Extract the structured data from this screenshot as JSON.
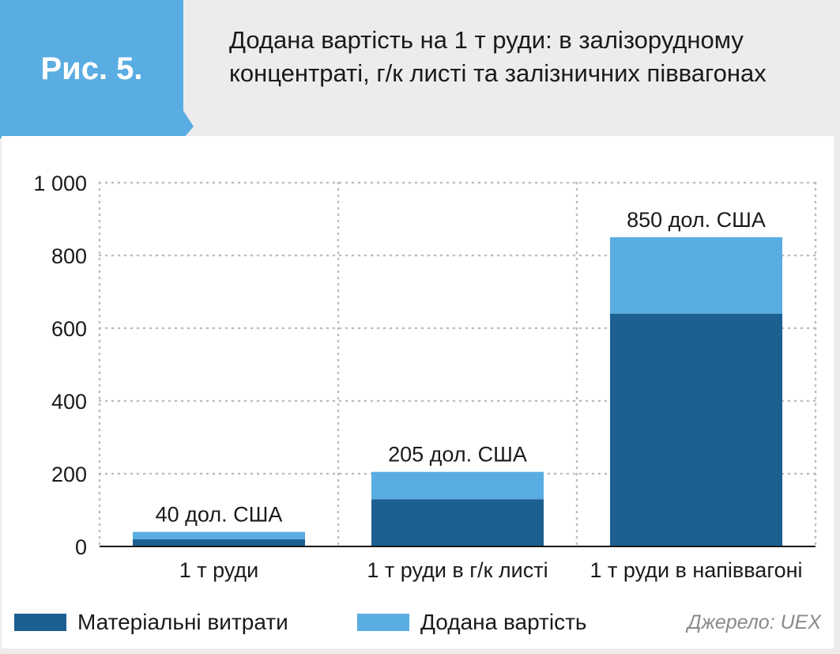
{
  "figure_label": "Рис. 5.",
  "title": "Додана вартість на 1 т руди: в залізорудному концентраті, г/к листі та залізничних піввагонах",
  "source": "Джерело: UEX",
  "colors": {
    "badge": "#5aade2",
    "material": "#1c5f91",
    "added": "#5aade2",
    "grid": "#bdbdbd",
    "frame": "#ececec"
  },
  "chart_data": {
    "type": "bar",
    "stacked": true,
    "categories": [
      "1 т руди",
      "1 т руди в г/к листі",
      "1 т руди в напіввагоні"
    ],
    "series": [
      {
        "name": "Матеріальні витрати",
        "values": [
          20,
          130,
          640
        ]
      },
      {
        "name": "Додана вартість",
        "values": [
          20,
          75,
          210
        ]
      }
    ],
    "totals_labels": [
      "40 дол. США",
      "205 дол. США",
      "850 дол. США"
    ],
    "y_ticks": [
      0,
      200,
      400,
      600,
      800,
      1000
    ],
    "y_tick_labels": [
      "0",
      "200",
      "400",
      "600",
      "800",
      "1 000"
    ],
    "ylim": [
      0,
      1000
    ],
    "grid": true,
    "legend_position": "bottom-left"
  }
}
